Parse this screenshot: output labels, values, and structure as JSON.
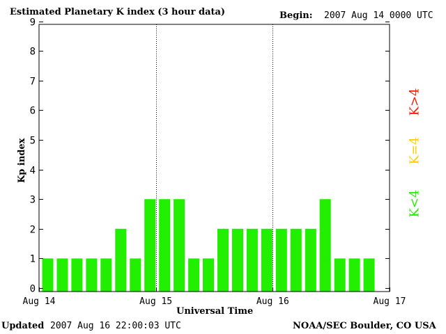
{
  "header": {
    "title": "Estimated Planetary K index (3 hour data)",
    "begin_label": "Begin:",
    "begin_value": "2007 Aug 14 0000 UTC"
  },
  "footer": {
    "updated_label": "Updated",
    "updated_value": "2007 Aug 16 22:00:03 UTC",
    "source": "NOAA/SEC Boulder, CO USA"
  },
  "legend": {
    "high": "K>4",
    "mid": "K=4",
    "low": "K<4"
  },
  "colors": {
    "bar": "#22ee00",
    "high": "#ee2200",
    "mid": "#ffcc00",
    "low": "#22ee00"
  },
  "chart_data": {
    "type": "bar",
    "xlabel": "Universal Time",
    "ylabel": "Kp index",
    "ylim": [
      0,
      9
    ],
    "yticks": [
      "0",
      "1",
      "2",
      "3",
      "4",
      "5",
      "6",
      "7",
      "8",
      "9"
    ],
    "day_labels": [
      "Aug 14",
      "Aug 15",
      "Aug 16",
      "Aug 17"
    ],
    "bar_hours": 3,
    "values": [
      1,
      1,
      1,
      1,
      1,
      2,
      1,
      3,
      3,
      3,
      1,
      1,
      2,
      2,
      2,
      2,
      2,
      2,
      2,
      3,
      1,
      1,
      1
    ]
  }
}
